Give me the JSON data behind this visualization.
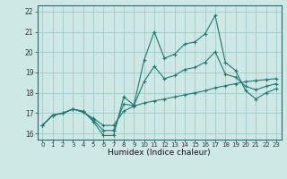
{
  "xlabel": "Humidex (Indice chaleur)",
  "bg_color": "#cde8e5",
  "grid_color": "#a0ccc8",
  "line_color": "#1e7a6e",
  "xlim": [
    -0.5,
    23.5
  ],
  "ylim": [
    15.7,
    22.3
  ],
  "yticks": [
    16,
    17,
    18,
    19,
    20,
    21,
    22
  ],
  "xticks": [
    0,
    1,
    2,
    3,
    4,
    5,
    6,
    7,
    8,
    9,
    10,
    11,
    12,
    13,
    14,
    15,
    16,
    17,
    18,
    19,
    20,
    21,
    22,
    23
  ],
  "curve1_y": [
    16.4,
    16.9,
    17.0,
    17.2,
    17.1,
    16.6,
    15.9,
    15.9,
    17.8,
    17.4,
    19.6,
    21.0,
    19.7,
    19.9,
    20.4,
    20.5,
    20.9,
    21.8,
    19.5,
    19.1,
    18.1,
    17.7,
    18.0,
    18.2
  ],
  "curve2_y": [
    16.4,
    16.9,
    17.0,
    17.2,
    17.05,
    16.75,
    16.4,
    16.4,
    17.1,
    17.35,
    17.5,
    17.6,
    17.7,
    17.8,
    17.9,
    18.0,
    18.1,
    18.25,
    18.35,
    18.45,
    18.55,
    18.6,
    18.65,
    18.7
  ],
  "curve3_y": [
    16.4,
    16.9,
    17.0,
    17.2,
    17.07,
    16.67,
    16.15,
    16.15,
    17.45,
    17.37,
    18.55,
    19.3,
    18.7,
    18.85,
    19.15,
    19.25,
    19.5,
    20.02,
    18.92,
    18.77,
    18.32,
    18.15,
    18.32,
    18.45
  ]
}
